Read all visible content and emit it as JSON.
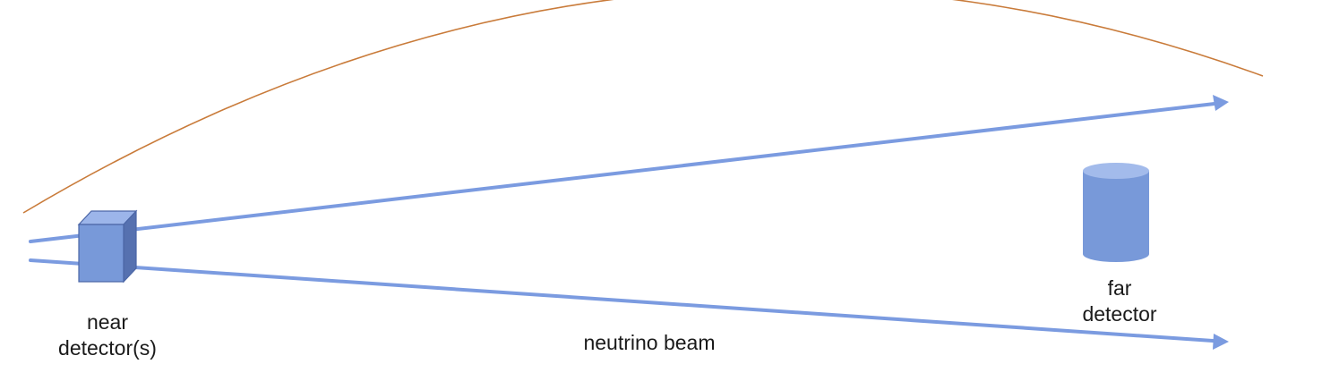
{
  "diagram": {
    "near_detector_label": [
      "near",
      "detector(s)"
    ],
    "far_detector_label": [
      "far",
      "detector"
    ],
    "beam_label": "neutrino beam"
  },
  "colors": {
    "beam": "#7b9be0",
    "earth_curve": "#c97b3a",
    "detector_front": "#7899d9",
    "detector_top": "#9cb5ea",
    "detector_side": "#5671b0",
    "detector_outline": "#4b66a6"
  }
}
